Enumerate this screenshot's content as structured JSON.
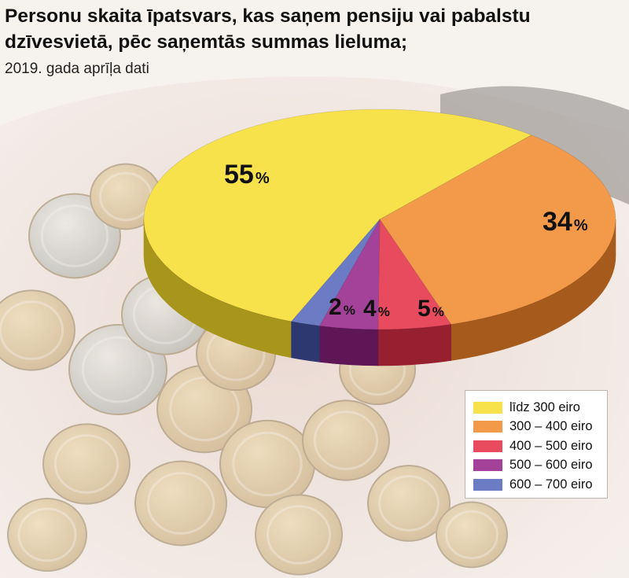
{
  "header": {
    "title": "Personu skaita īpatsvars, kas saņem pensiju vai pabalstu dzīvesvietā, pēc  saņemtās summas lieluma;",
    "subtitle": "2019. gada aprīļa dati"
  },
  "chart_data": {
    "type": "pie",
    "style": "3d",
    "title": "Personu skaita īpatsvars, kas saņem pensiju vai pabalstu dzīvesvietā, pēc  saņemtās summas lieluma;",
    "subtitle": "2019. gada aprīļa dati",
    "unit": "%",
    "slices": [
      {
        "label": "līdz 300 eiro",
        "value": 55,
        "value_label": "55",
        "color": "#f7e24b",
        "side_color": "#a8951c"
      },
      {
        "label": "300 – 400 eiro",
        "value": 34,
        "value_label": "34",
        "color": "#f39a4a",
        "side_color": "#a65a1c"
      },
      {
        "label": "400 – 500 eiro",
        "value": 5,
        "value_label": "5",
        "color": "#e84a5e",
        "side_color": "#961f30"
      },
      {
        "label": "500 – 600 eiro",
        "value": 4,
        "value_label": "4",
        "color": "#a4429a",
        "side_color": "#5e1656"
      },
      {
        "label": "600 – 700 eiro",
        "value": 2,
        "value_label": "2",
        "color": "#6b7bc4",
        "side_color": "#2e3870"
      }
    ],
    "legend": {
      "position": "bottom-right"
    }
  },
  "background": {
    "description_icon": "coins-in-hand-photo"
  }
}
